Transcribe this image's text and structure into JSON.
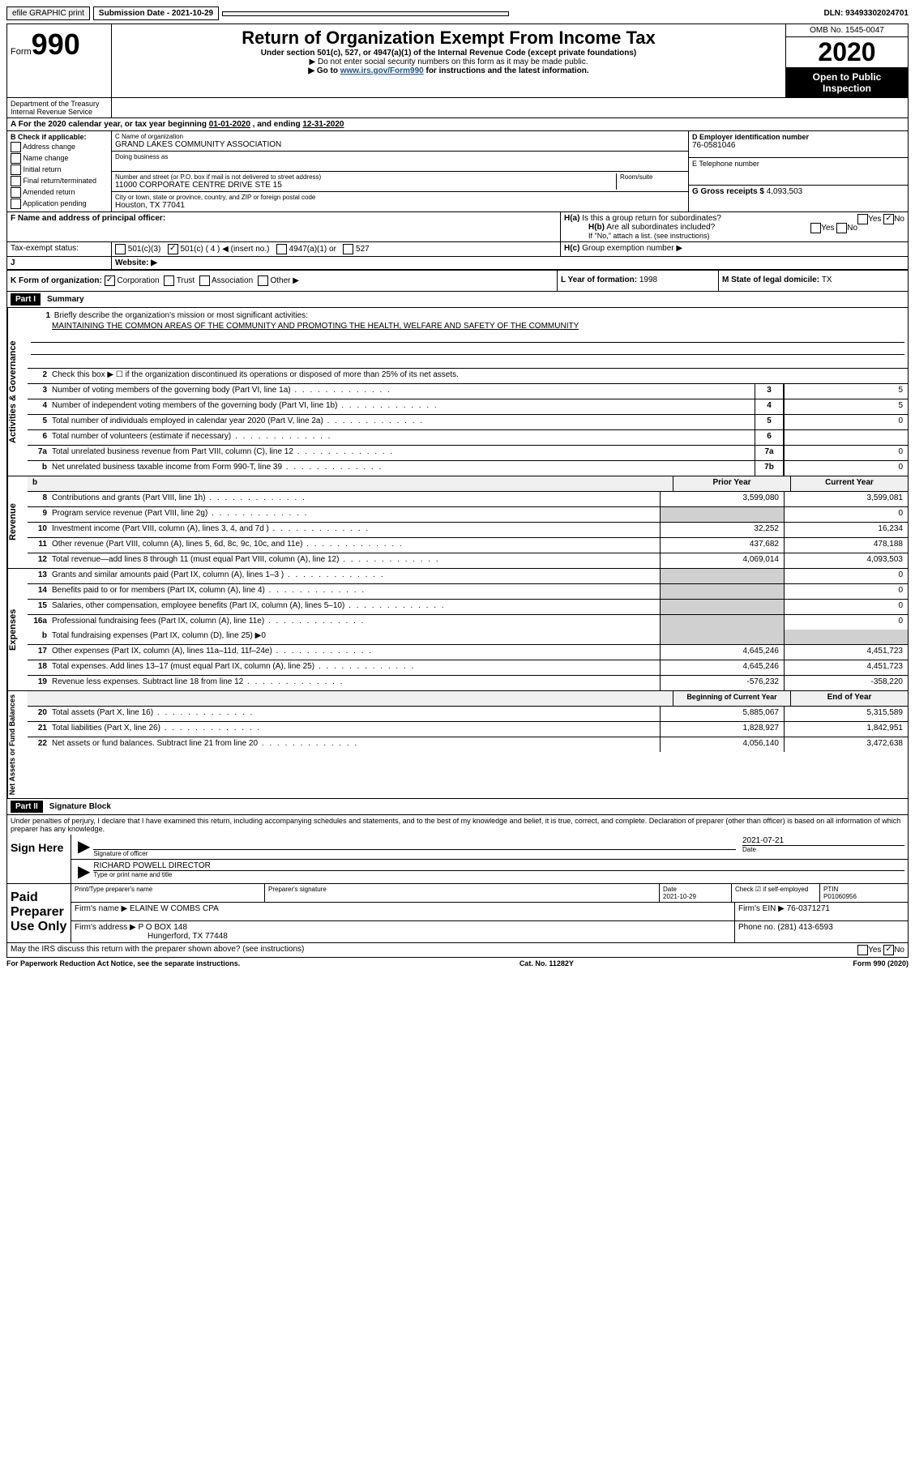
{
  "topbar": {
    "efile": "efile GRAPHIC print",
    "submission_label": "Submission Date - 2021-10-29",
    "dln": "DLN: 93493302024701"
  },
  "header": {
    "form_label": "Form",
    "form_number": "990",
    "title": "Return of Organization Exempt From Income Tax",
    "subtitle": "Under section 501(c), 527, or 4947(a)(1) of the Internal Revenue Code (except private foundations)",
    "note1": "▶ Do not enter social security numbers on this form as it may be made public.",
    "note2_prefix": "▶ Go to ",
    "note2_link": "www.irs.gov/Form990",
    "note2_suffix": " for instructions and the latest information.",
    "omb": "OMB No. 1545-0047",
    "year": "2020",
    "open_public": "Open to Public Inspection",
    "dept": "Department of the Treasury\nInternal Revenue Service"
  },
  "section_a": {
    "text_prefix": "A For the 2020 calendar year, or tax year beginning ",
    "begin": "01-01-2020",
    "mid": " , and ending ",
    "end": "12-31-2020"
  },
  "section_b": {
    "label": "B Check if applicable:",
    "items": [
      "Address change",
      "Name change",
      "Initial return",
      "Final return/terminated",
      "Amended return",
      "Application pending"
    ]
  },
  "section_c": {
    "name_label": "C Name of organization",
    "name": "GRAND LAKES COMMUNITY ASSOCIATION",
    "dba_label": "Doing business as",
    "addr_label": "Number and street (or P.O. box if mail is not delivered to street address)",
    "room_label": "Room/suite",
    "addr": "11000 CORPORATE CENTRE DRIVE STE 15",
    "city_label": "City or town, state or province, country, and ZIP or foreign postal code",
    "city": "Houston, TX  77041"
  },
  "section_d": {
    "ein_label": "D Employer identification number",
    "ein": "76-0581046",
    "phone_label": "E Telephone number",
    "gross_label": "G Gross receipts $ ",
    "gross": "4,093,503"
  },
  "section_f": {
    "label": "F Name and address of principal officer:"
  },
  "section_h": {
    "ha_label": "H(a)",
    "ha_text": "Is this a group return for subordinates?",
    "hb_label": "H(b)",
    "hb_text": "Are all subordinates included?",
    "hb_note": "If \"No,\" attach a list. (see instructions)",
    "hc_label": "H(c)",
    "hc_text": "Group exemption number ▶",
    "yes": "Yes",
    "no": "No"
  },
  "section_i": {
    "label": "Tax-exempt status:",
    "opt1": "501(c)(3)",
    "opt2": "501(c) ( 4 ) ◀ (insert no.)",
    "opt3": "4947(a)(1) or",
    "opt4": "527"
  },
  "section_j": {
    "label": "J",
    "text": "Website: ▶"
  },
  "section_k": {
    "k_label": "K Form of organization:",
    "k_opts": [
      "Corporation",
      "Trust",
      "Association",
      "Other ▶"
    ],
    "l_label": "L Year of formation: ",
    "l_val": "1998",
    "m_label": "M State of legal domicile: ",
    "m_val": "TX"
  },
  "part1": {
    "header": "Part I",
    "title": "Summary",
    "vtab_gov": "Activities & Governance",
    "vtab_rev": "Revenue",
    "vtab_exp": "Expenses",
    "vtab_net": "Net Assets or Fund Balances",
    "line1_label": "1",
    "line1_text": "Briefly describe the organization's mission or most significant activities:",
    "line1_value": "MAINTAINING THE COMMON AREAS OF THE COMMUNITY AND PROMOTING THE HEALTH, WELFARE AND SAFETY OF THE COMMUNITY",
    "line2_text": "Check this box ▶ ☐  if the organization discontinued its operations or disposed of more than 25% of its net assets.",
    "gov_lines": [
      {
        "n": "3",
        "d": "Number of voting members of the governing body (Part VI, line 1a)",
        "m": "3",
        "v": "5"
      },
      {
        "n": "4",
        "d": "Number of independent voting members of the governing body (Part VI, line 1b)",
        "m": "4",
        "v": "5"
      },
      {
        "n": "5",
        "d": "Total number of individuals employed in calendar year 2020 (Part V, line 2a)",
        "m": "5",
        "v": "0"
      },
      {
        "n": "6",
        "d": "Total number of volunteers (estimate if necessary)",
        "m": "6",
        "v": ""
      },
      {
        "n": "7a",
        "d": "Total unrelated business revenue from Part VIII, column (C), line 12",
        "m": "7a",
        "v": "0"
      },
      {
        "n": "b",
        "d": "Net unrelated business taxable income from Form 990-T, line 39",
        "m": "7b",
        "v": "0"
      }
    ],
    "prior_year": "Prior Year",
    "current_year": "Current Year",
    "rev_lines": [
      {
        "n": "8",
        "d": "Contributions and grants (Part VIII, line 1h)",
        "p": "3,599,080",
        "c": "3,599,081"
      },
      {
        "n": "9",
        "d": "Program service revenue (Part VIII, line 2g)",
        "p": "",
        "c": "0"
      },
      {
        "n": "10",
        "d": "Investment income (Part VIII, column (A), lines 3, 4, and 7d )",
        "p": "32,252",
        "c": "16,234"
      },
      {
        "n": "11",
        "d": "Other revenue (Part VIII, column (A), lines 5, 6d, 8c, 9c, 10c, and 11e)",
        "p": "437,682",
        "c": "478,188"
      },
      {
        "n": "12",
        "d": "Total revenue—add lines 8 through 11 (must equal Part VIII, column (A), line 12)",
        "p": "4,069,014",
        "c": "4,093,503"
      }
    ],
    "exp_lines": [
      {
        "n": "13",
        "d": "Grants and similar amounts paid (Part IX, column (A), lines 1–3 )",
        "p": "",
        "c": "0"
      },
      {
        "n": "14",
        "d": "Benefits paid to or for members (Part IX, column (A), line 4)",
        "p": "",
        "c": "0"
      },
      {
        "n": "15",
        "d": "Salaries, other compensation, employee benefits (Part IX, column (A), lines 5–10)",
        "p": "",
        "c": "0"
      },
      {
        "n": "16a",
        "d": "Professional fundraising fees (Part IX, column (A), line 11e)",
        "p": "",
        "c": "0"
      }
    ],
    "line16b_text": "Total fundraising expenses (Part IX, column (D), line 25) ▶0",
    "exp_lines2": [
      {
        "n": "17",
        "d": "Other expenses (Part IX, column (A), lines 11a–11d, 11f–24e)",
        "p": "4,645,246",
        "c": "4,451,723"
      },
      {
        "n": "18",
        "d": "Total expenses. Add lines 13–17 (must equal Part IX, column (A), line 25)",
        "p": "4,645,246",
        "c": "4,451,723"
      },
      {
        "n": "19",
        "d": "Revenue less expenses. Subtract line 18 from line 12",
        "p": "-576,232",
        "c": "-358,220"
      }
    ],
    "begin_year": "Beginning of Current Year",
    "end_year": "End of Year",
    "net_lines": [
      {
        "n": "20",
        "d": "Total assets (Part X, line 16)",
        "p": "5,885,067",
        "c": "5,315,589"
      },
      {
        "n": "21",
        "d": "Total liabilities (Part X, line 26)",
        "p": "1,828,927",
        "c": "1,842,951"
      },
      {
        "n": "22",
        "d": "Net assets or fund balances. Subtract line 21 from line 20",
        "p": "4,056,140",
        "c": "3,472,638"
      }
    ]
  },
  "part2": {
    "header": "Part II",
    "title": "Signature Block",
    "penalties": "Under penalties of perjury, I declare that I have examined this return, including accompanying schedules and statements, and to the best of my knowledge and belief, it is true, correct, and complete. Declaration of preparer (other than officer) is based on all information of which preparer has any knowledge.",
    "sign_here": "Sign Here",
    "sig_officer": "Signature of officer",
    "sig_date_label": "Date",
    "sig_date": "2021-07-21",
    "sig_name": "RICHARD POWELL  DIRECTOR",
    "sig_name_label": "Type or print name and title",
    "paid_label": "Paid Preparer Use Only",
    "prep_name_label": "Print/Type preparer's name",
    "prep_sig_label": "Preparer's signature",
    "prep_date_label": "Date",
    "prep_date": "2021-10-29",
    "prep_check_label": "Check ☑ if self-employed",
    "ptin_label": "PTIN",
    "ptin": "P01060956",
    "firm_name_label": "Firm's name    ▶",
    "firm_name": "ELAINE W COMBS CPA",
    "firm_ein_label": "Firm's EIN ▶",
    "firm_ein": "76-0371271",
    "firm_addr_label": "Firm's address ▶",
    "firm_addr1": "P O BOX 148",
    "firm_addr2": "Hungerford, TX  77448",
    "phone_label": "Phone no. ",
    "phone": "(281) 413-6593",
    "discuss": "May the IRS discuss this return with the preparer shown above? (see instructions)",
    "paperwork": "For Paperwork Reduction Act Notice, see the separate instructions.",
    "cat": "Cat. No. 11282Y",
    "form_foot": "Form 990 (2020)"
  }
}
